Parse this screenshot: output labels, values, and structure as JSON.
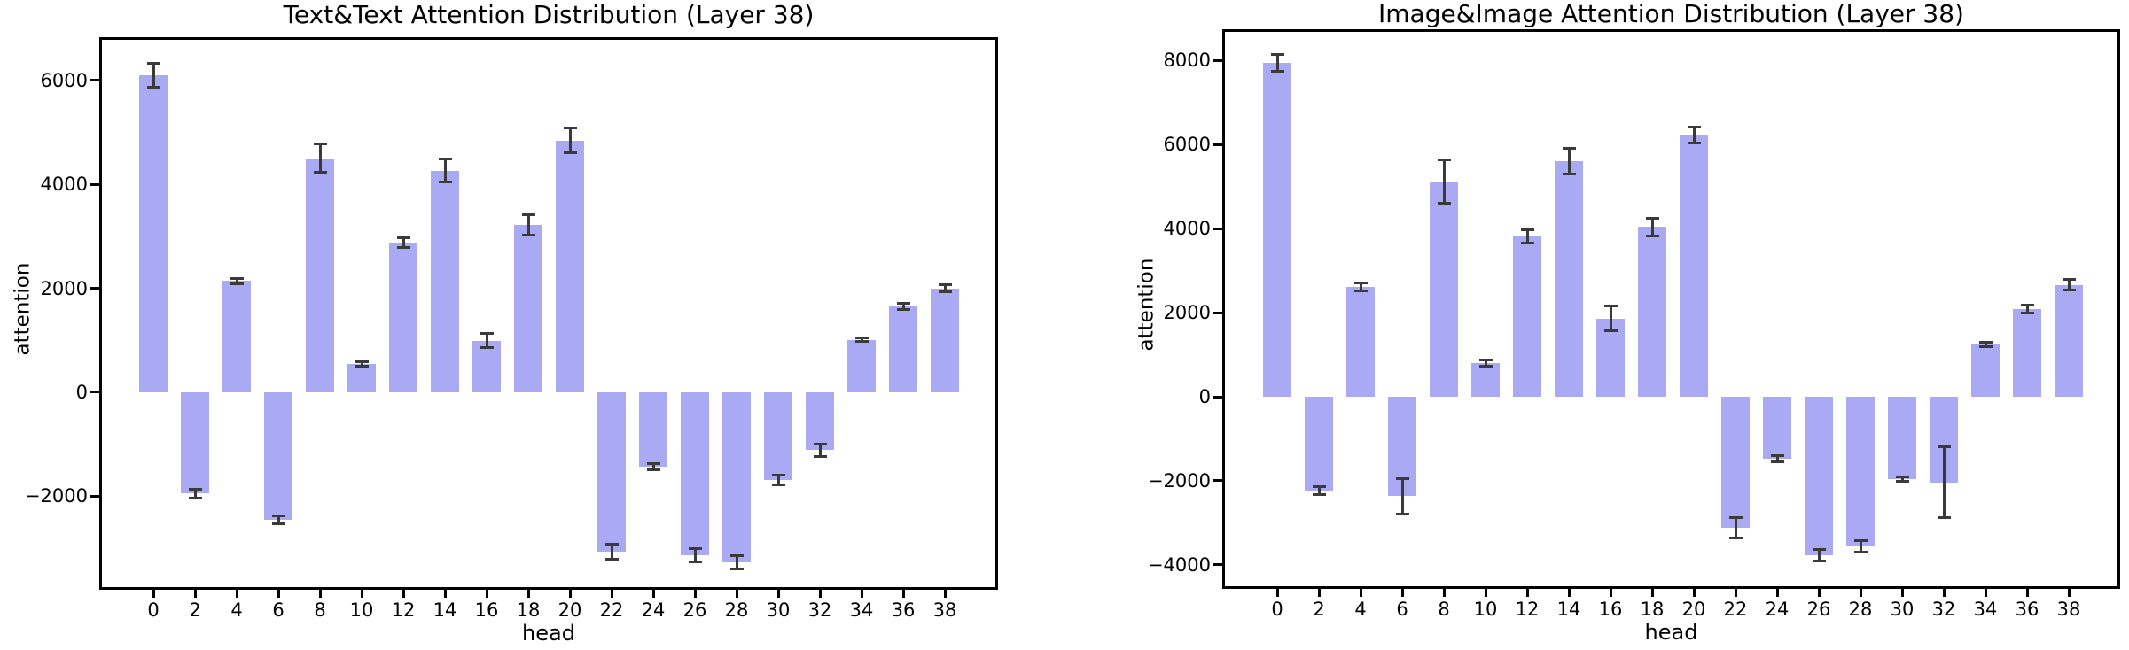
{
  "chart_data": [
    {
      "type": "bar",
      "title": "Text&Text Attention Distribution (Layer 38)",
      "xlabel": "head",
      "ylabel": "attention",
      "categories": [
        "0",
        "2",
        "4",
        "6",
        "8",
        "10",
        "12",
        "14",
        "16",
        "18",
        "20",
        "22",
        "24",
        "26",
        "28",
        "30",
        "32",
        "34",
        "36",
        "38"
      ],
      "values": [
        6090,
        -1950,
        2140,
        -2450,
        4500,
        540,
        2880,
        4260,
        990,
        3220,
        4840,
        -3070,
        -1430,
        -3135,
        -3270,
        -1690,
        -1110,
        1010,
        1650,
        2000
      ],
      "errors": [
        230,
        80,
        50,
        80,
        270,
        40,
        100,
        220,
        135,
        190,
        240,
        150,
        60,
        130,
        130,
        90,
        120,
        40,
        60,
        70
      ],
      "ylim": [
        -3800,
        6830
      ],
      "yticks": [
        {
          "value": 6000,
          "label": "6000"
        },
        {
          "value": 4000,
          "label": "4000"
        },
        {
          "value": 2000,
          "label": "2000"
        },
        {
          "value": 0,
          "label": "0"
        },
        {
          "value": -2000,
          "label": "−2000"
        }
      ],
      "grid": false,
      "legend": null,
      "bar_color": "#a9a9f4",
      "error_color": "#3a3a3a"
    },
    {
      "type": "bar",
      "title": "Image&Image Attention Distribution (Layer 38)",
      "xlabel": "head",
      "ylabel": "attention",
      "categories": [
        "0",
        "2",
        "4",
        "6",
        "8",
        "10",
        "12",
        "14",
        "16",
        "18",
        "20",
        "22",
        "24",
        "26",
        "28",
        "30",
        "32",
        "34",
        "36",
        "38"
      ],
      "values": [
        7940,
        -2230,
        2610,
        -2360,
        5120,
        800,
        3810,
        5600,
        1860,
        4040,
        6230,
        -3110,
        -1470,
        -3770,
        -3560,
        -1960,
        -2040,
        1240,
        2090,
        2660
      ],
      "errors": [
        190,
        95,
        95,
        420,
        510,
        70,
        150,
        310,
        290,
        210,
        190,
        240,
        70,
        140,
        140,
        60,
        845,
        60,
        90,
        120
      ],
      "ylim": [
        -4570,
        8740
      ],
      "yticks": [
        {
          "value": 8000,
          "label": "8000"
        },
        {
          "value": 6000,
          "label": "6000"
        },
        {
          "value": 4000,
          "label": "4000"
        },
        {
          "value": 2000,
          "label": "2000"
        },
        {
          "value": 0,
          "label": "0"
        },
        {
          "value": -2000,
          "label": "−2000"
        },
        {
          "value": -4000,
          "label": "−4000"
        }
      ],
      "grid": false,
      "legend": null,
      "bar_color": "#a9a9f4",
      "error_color": "#3a3a3a"
    }
  ]
}
